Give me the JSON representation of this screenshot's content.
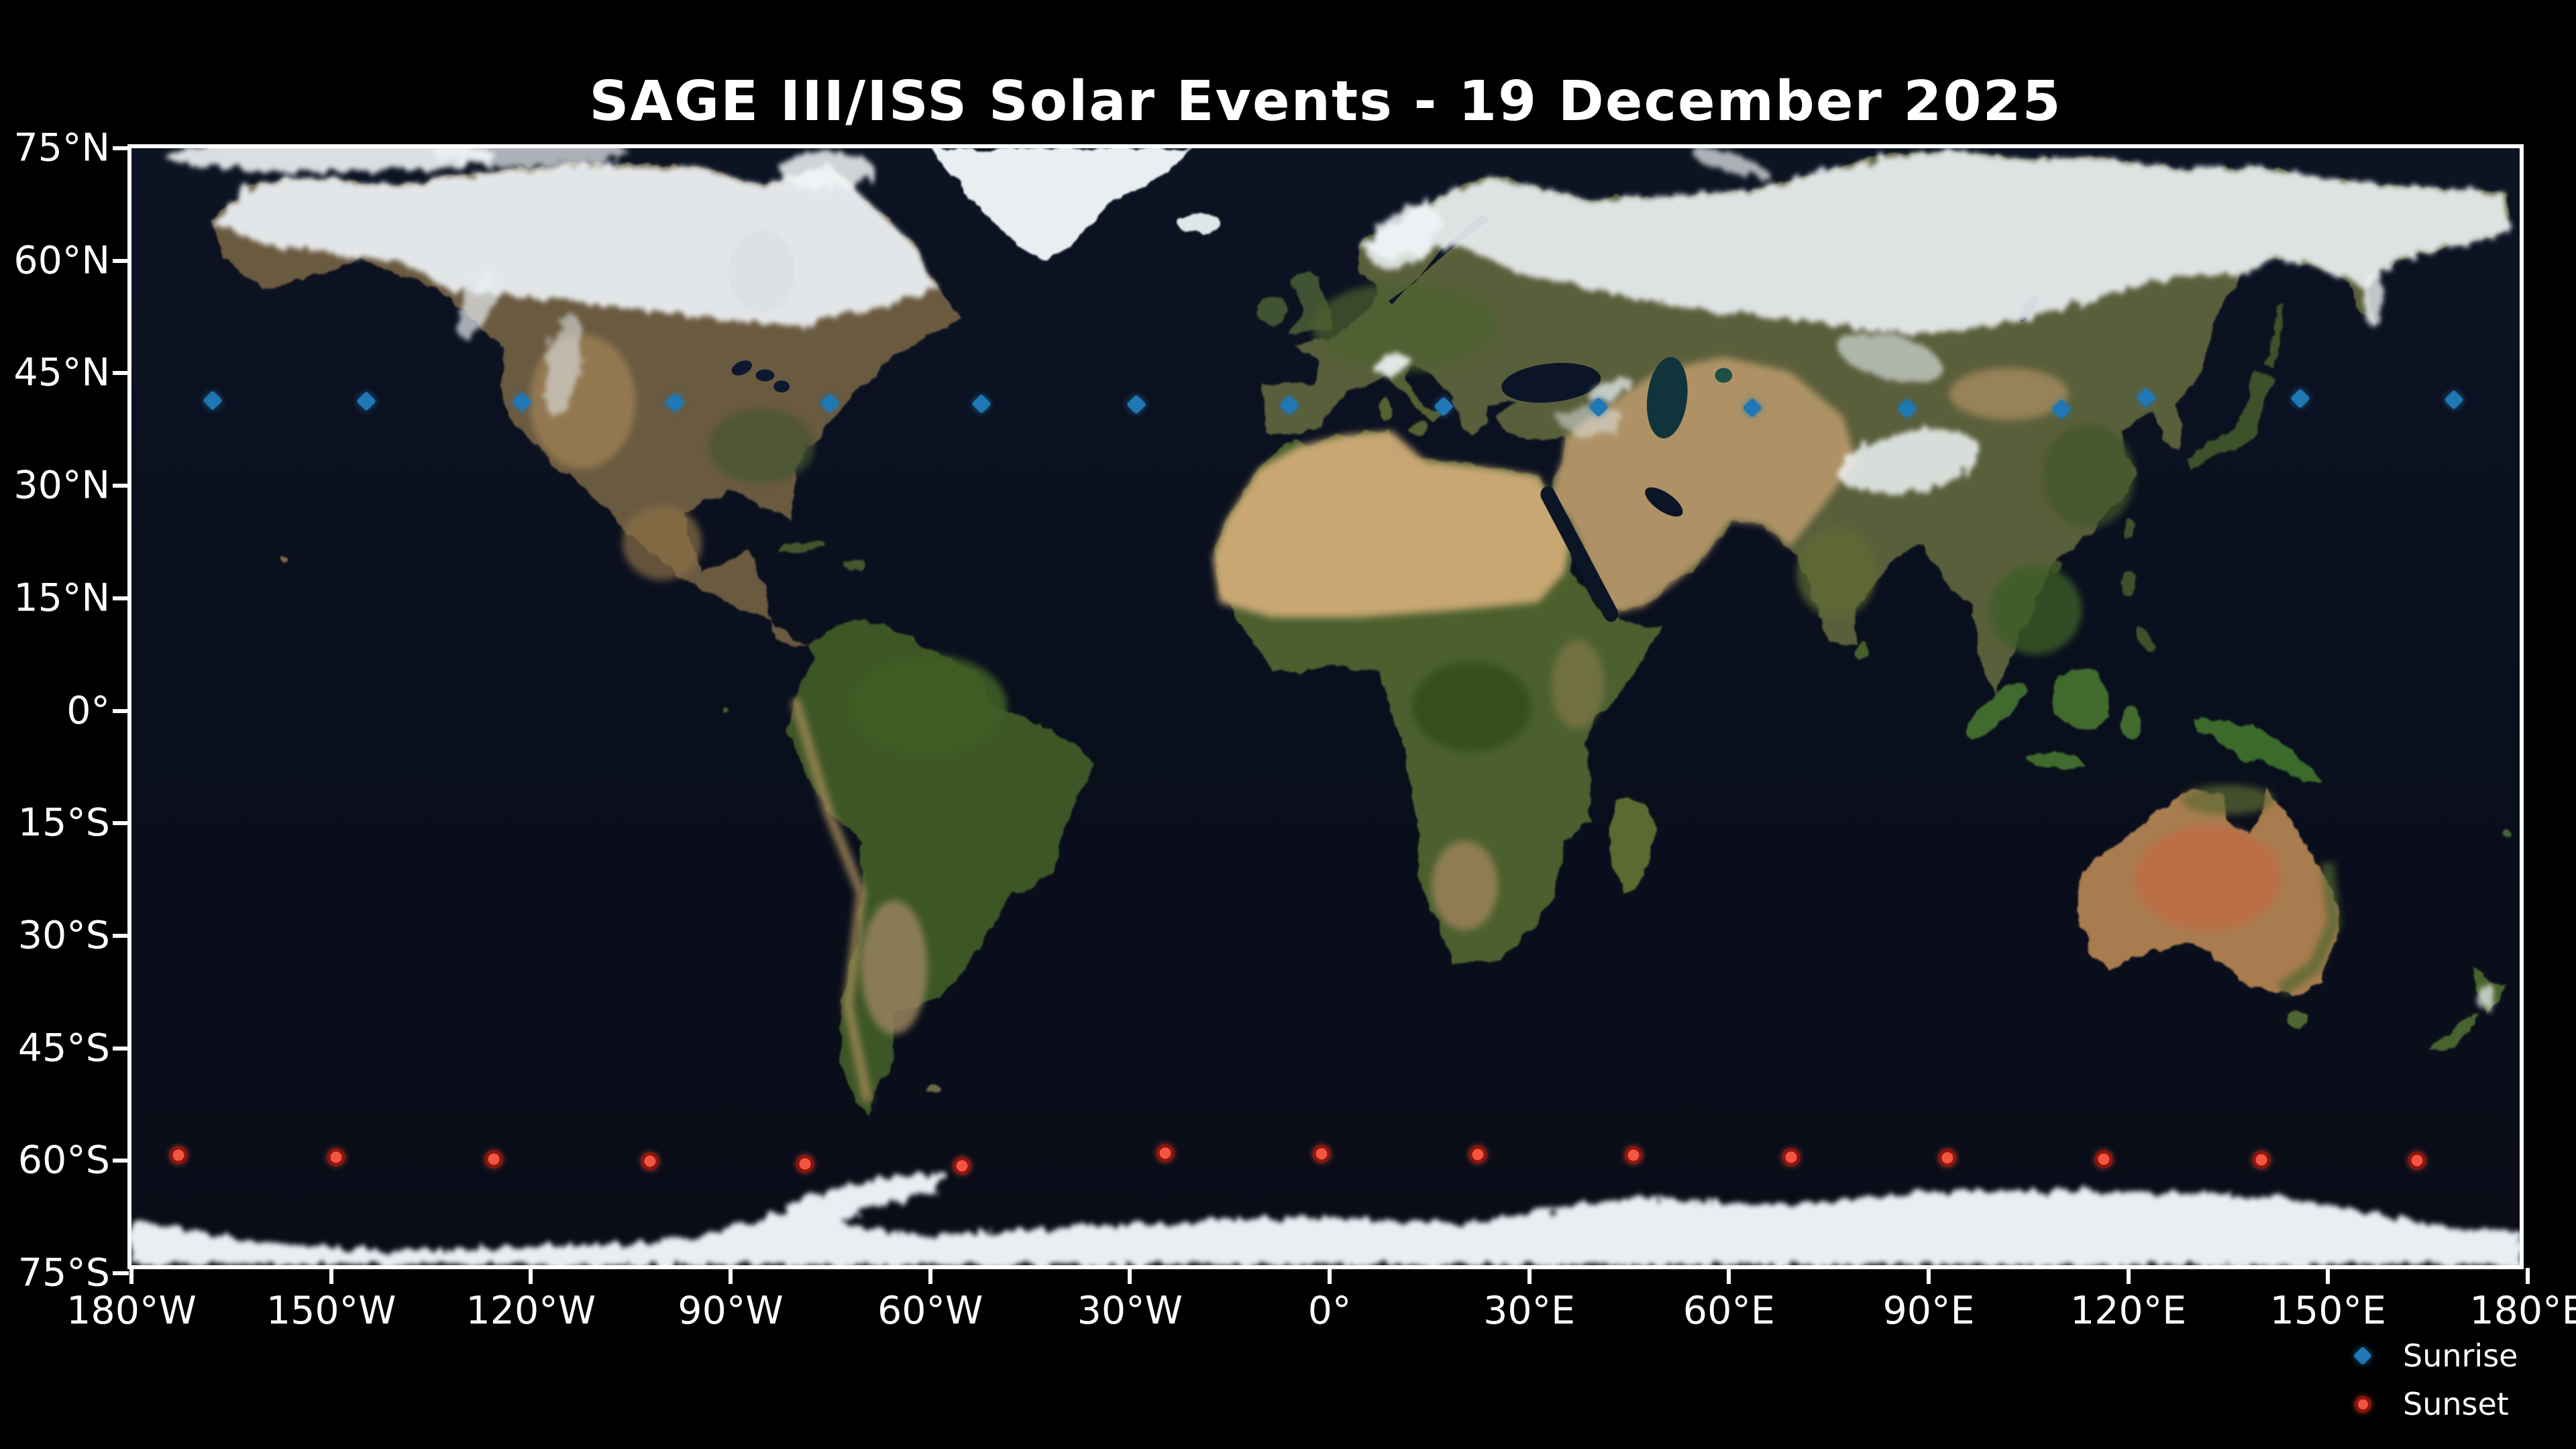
{
  "title": "SAGE III/ISS Solar Events - 19 December 2025",
  "axes": {
    "lat_ticks": [
      {
        "v": 75,
        "label": "75°N"
      },
      {
        "v": 60,
        "label": "60°N"
      },
      {
        "v": 45,
        "label": "45°N"
      },
      {
        "v": 30,
        "label": "30°N"
      },
      {
        "v": 15,
        "label": "15°N"
      },
      {
        "v": 0,
        "label": "0°"
      },
      {
        "v": -15,
        "label": "15°S"
      },
      {
        "v": -30,
        "label": "30°S"
      },
      {
        "v": -45,
        "label": "45°S"
      },
      {
        "v": -60,
        "label": "60°S"
      },
      {
        "v": -75,
        "label": "75°S"
      }
    ],
    "lon_ticks": [
      {
        "v": -180,
        "label": "180°W"
      },
      {
        "v": -150,
        "label": "150°W"
      },
      {
        "v": -120,
        "label": "120°W"
      },
      {
        "v": -90,
        "label": "90°W"
      },
      {
        "v": -60,
        "label": "60°W"
      },
      {
        "v": -30,
        "label": "30°W"
      },
      {
        "v": 0,
        "label": "0°"
      },
      {
        "v": 30,
        "label": "30°E"
      },
      {
        "v": 60,
        "label": "60°E"
      },
      {
        "v": 90,
        "label": "90°E"
      },
      {
        "v": 120,
        "label": "120°E"
      },
      {
        "v": 150,
        "label": "150°E"
      },
      {
        "v": 180,
        "label": "180°E"
      }
    ]
  },
  "legend": {
    "items": [
      {
        "name": "Sunrise",
        "marker": "diamond",
        "color": "#1f77b4"
      },
      {
        "name": "Sunset",
        "marker": "circle",
        "color": "#f25542",
        "edge_color": "#8c150c"
      }
    ]
  },
  "chart_data": {
    "type": "scatter",
    "title": "SAGE III/ISS Solar Events - 19 December 2025",
    "basemap": "satellite world map (Blue Marble style)",
    "x_axis": {
      "unit": "longitude_degrees",
      "range": [
        -180,
        180
      ],
      "tick_step": 30,
      "tick_labels": [
        "180°W",
        "150°W",
        "120°W",
        "90°W",
        "60°W",
        "30°W",
        "0°",
        "30°E",
        "60°E",
        "90°E",
        "120°E",
        "150°E",
        "180°E"
      ]
    },
    "y_axis": {
      "unit": "latitude_degrees",
      "range": [
        -75,
        75
      ],
      "tick_step": 15,
      "tick_labels": [
        "75°N",
        "60°N",
        "45°N",
        "30°N",
        "15°N",
        "0°",
        "15°S",
        "30°S",
        "45°S",
        "60°S",
        "75°S"
      ]
    },
    "grid": false,
    "legend_position": "lower-right, below axes",
    "series": [
      {
        "name": "Sunrise",
        "marker": "diamond",
        "color": "#1f77b4",
        "points": [
          {
            "lon": -167.8,
            "lat": 41.4
          },
          {
            "lon": -144.7,
            "lat": 41.3
          },
          {
            "lon": -121.3,
            "lat": 41.2
          },
          {
            "lon": -98.4,
            "lat": 41.1
          },
          {
            "lon": -75.1,
            "lat": 41.0
          },
          {
            "lon": -52.3,
            "lat": 40.9
          },
          {
            "lon": -29.0,
            "lat": 40.8
          },
          {
            "lon": -6.0,
            "lat": 40.7
          },
          {
            "lon": 17.1,
            "lat": 40.6
          },
          {
            "lon": 40.4,
            "lat": 40.5
          },
          {
            "lon": 63.5,
            "lat": 40.4
          },
          {
            "lon": 86.8,
            "lat": 40.3
          },
          {
            "lon": 110.0,
            "lat": 40.2
          },
          {
            "lon": 122.7,
            "lat": 41.7
          },
          {
            "lon": 145.8,
            "lat": 41.6
          },
          {
            "lon": 168.9,
            "lat": 41.5
          }
        ]
      },
      {
        "name": "Sunset",
        "marker": "circle",
        "color": "#f25542",
        "edge_color": "#8c150c",
        "points": [
          {
            "lon": -172.9,
            "lat": -59.3
          },
          {
            "lon": -149.3,
            "lat": -59.5
          },
          {
            "lon": -125.6,
            "lat": -59.8
          },
          {
            "lon": -102.1,
            "lat": -60.1
          },
          {
            "lon": -78.8,
            "lat": -60.4
          },
          {
            "lon": -55.2,
            "lat": -60.7
          },
          {
            "lon": -24.7,
            "lat": -59.0
          },
          {
            "lon": -1.2,
            "lat": -59.1
          },
          {
            "lon": 22.3,
            "lat": -59.2
          },
          {
            "lon": 45.7,
            "lat": -59.3
          },
          {
            "lon": 69.3,
            "lat": -59.5
          },
          {
            "lon": 92.8,
            "lat": -59.6
          },
          {
            "lon": 116.3,
            "lat": -59.8
          },
          {
            "lon": 140.0,
            "lat": -59.9
          },
          {
            "lon": 163.4,
            "lat": -60.0
          }
        ]
      }
    ]
  }
}
